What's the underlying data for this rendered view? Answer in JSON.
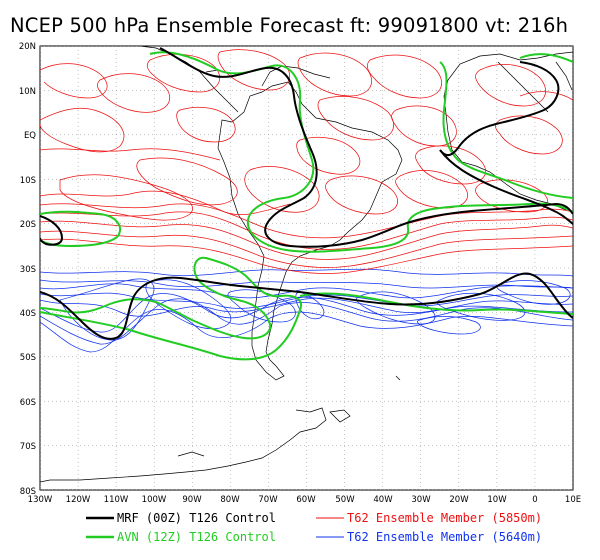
{
  "title": "NCEP 500 hPa Ensemble Forecast  ft: 99091800 vt: 216h",
  "map": {
    "lat_labels": [
      "20N",
      "10N",
      "EQ",
      "10S",
      "20S",
      "30S",
      "40S",
      "50S",
      "60S",
      "70S",
      "80S"
    ],
    "lon_labels": [
      "130W",
      "120W",
      "110W",
      "100W",
      "90W",
      "80W",
      "70W",
      "60W",
      "50W",
      "40W",
      "30W",
      "20W",
      "10W",
      "0",
      "10E"
    ],
    "lat_range": [
      20,
      -80
    ],
    "lon_range": [
      -130,
      10
    ]
  },
  "legend": [
    {
      "label": "MRF (00Z) T126 Control",
      "color": "#000000"
    },
    {
      "label": "T62 Ensemble Member (5850m)",
      "color": "#ee1111"
    },
    {
      "label": "AVN (12Z) T126 Control",
      "color": "#22cc22"
    },
    {
      "label": "T62 Ensemble Member (5640m)",
      "color": "#1133ee"
    }
  ],
  "colors": {
    "mrf": "#000000",
    "red": "#ee1111",
    "avn": "#22cc22",
    "blue": "#1133ee",
    "coast": "#000000",
    "grid": "#888888"
  }
}
